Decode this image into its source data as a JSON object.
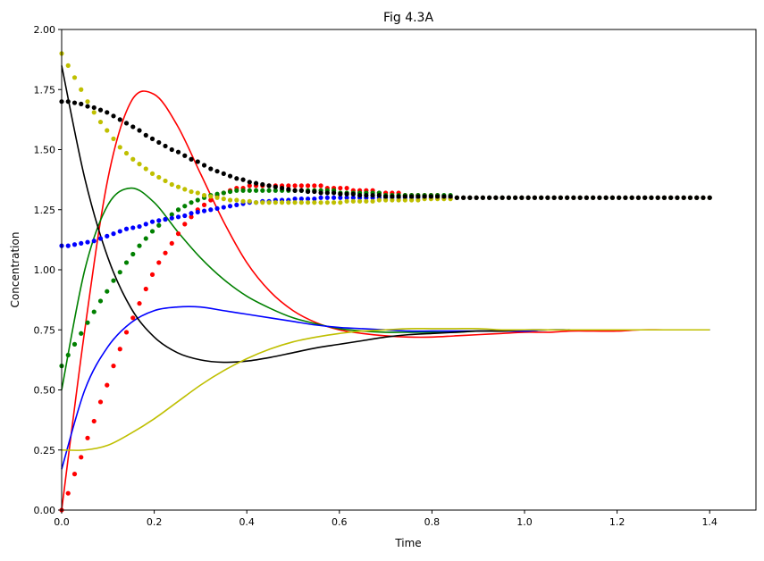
{
  "chart_data": {
    "type": "line",
    "title": "Fig 4.3A",
    "xlabel": "Time",
    "ylabel": "Concentration",
    "xlim": [
      0,
      1.5
    ],
    "ylim": [
      0,
      2.0
    ],
    "grid": false,
    "xticks": [
      "0.0",
      "0.2",
      "0.4",
      "0.6",
      "0.8",
      "1.0",
      "1.2",
      "1.4"
    ],
    "xtick_values": [
      0,
      0.2,
      0.4,
      0.6,
      0.8,
      1.0,
      1.2,
      1.4
    ],
    "yticks": [
      "0.00",
      "0.25",
      "0.50",
      "0.75",
      "1.00",
      "1.25",
      "1.50",
      "1.75",
      "2.00"
    ],
    "ytick_values": [
      0,
      0.25,
      0.5,
      0.75,
      1.0,
      1.25,
      1.5,
      1.75,
      2.0
    ],
    "line_x_start": 0,
    "line_x_step": 0.05,
    "lines": [
      {
        "name": "red-line",
        "color": "#ff0000",
        "values": [
          0,
          0.75,
          1.38,
          1.7,
          1.73,
          1.6,
          1.4,
          1.2,
          1.03,
          0.91,
          0.83,
          0.78,
          0.75,
          0.735,
          0.725,
          0.72,
          0.72,
          0.725,
          0.73,
          0.735,
          0.74,
          0.74,
          0.745,
          0.745,
          0.745,
          0.75,
          0.75,
          0.75,
          0.75
        ]
      },
      {
        "name": "green-line",
        "color": "#008000",
        "values": [
          0.5,
          1.0,
          1.27,
          1.34,
          1.28,
          1.16,
          1.05,
          0.96,
          0.89,
          0.84,
          0.8,
          0.775,
          0.755,
          0.745,
          0.74,
          0.74,
          0.74,
          0.74,
          0.745,
          0.745,
          0.745,
          0.75,
          0.75,
          0.75,
          0.75,
          0.75,
          0.75,
          0.75,
          0.75
        ]
      },
      {
        "name": "blue-line",
        "color": "#0000ff",
        "values": [
          0.17,
          0.5,
          0.68,
          0.78,
          0.83,
          0.845,
          0.845,
          0.83,
          0.815,
          0.8,
          0.785,
          0.77,
          0.76,
          0.755,
          0.75,
          0.745,
          0.745,
          0.745,
          0.745,
          0.745,
          0.745,
          0.75,
          0.75,
          0.75,
          0.75,
          0.75,
          0.75,
          0.75,
          0.75
        ]
      },
      {
        "name": "black-line",
        "color": "#000000",
        "values": [
          1.85,
          1.38,
          1.05,
          0.84,
          0.72,
          0.655,
          0.625,
          0.615,
          0.62,
          0.635,
          0.655,
          0.675,
          0.69,
          0.705,
          0.72,
          0.73,
          0.735,
          0.74,
          0.745,
          0.745,
          0.75,
          0.75,
          0.75,
          0.75,
          0.75,
          0.75,
          0.75,
          0.75,
          0.75
        ]
      },
      {
        "name": "yellow-line",
        "color": "#bfbf00",
        "values": [
          0.25,
          0.25,
          0.27,
          0.32,
          0.38,
          0.45,
          0.52,
          0.58,
          0.63,
          0.67,
          0.7,
          0.72,
          0.735,
          0.745,
          0.75,
          0.755,
          0.755,
          0.755,
          0.755,
          0.75,
          0.75,
          0.75,
          0.75,
          0.75,
          0.75,
          0.75,
          0.75,
          0.75,
          0.75
        ]
      }
    ],
    "dot_x_start": 0,
    "dot_x_step": 0.014,
    "dots": [
      {
        "name": "red-dots",
        "color": "#ff0000",
        "values": [
          0,
          0.07,
          0.15,
          0.22,
          0.3,
          0.37,
          0.45,
          0.52,
          0.6,
          0.67,
          0.74,
          0.8,
          0.86,
          0.92,
          0.98,
          1.03,
          1.07,
          1.11,
          1.15,
          1.19,
          1.22,
          1.25,
          1.27,
          1.29,
          1.31,
          1.32,
          1.33,
          1.34,
          1.34,
          1.35,
          1.35,
          1.35,
          1.35,
          1.35,
          1.35,
          1.35,
          1.35,
          1.35,
          1.35,
          1.35,
          1.35,
          1.34,
          1.34,
          1.34,
          1.34,
          1.33,
          1.33,
          1.33,
          1.33,
          1.32,
          1.32,
          1.32,
          1.32,
          1.31,
          1.31,
          1.31,
          1.31,
          1.31,
          1.31,
          1.3,
          1.3,
          1.3,
          1.3,
          1.3,
          1.3,
          1.3,
          1.3,
          1.3,
          1.3,
          1.3,
          1.3,
          1.3,
          1.3,
          1.3,
          1.3,
          1.3,
          1.3,
          1.3,
          1.3,
          1.3,
          1.3,
          1.3,
          1.3,
          1.3,
          1.3,
          1.3,
          1.3,
          1.3,
          1.3,
          1.3,
          1.3,
          1.3,
          1.3,
          1.3,
          1.3,
          1.3,
          1.3,
          1.3,
          1.3,
          1.3,
          1.3
        ]
      },
      {
        "name": "green-dots",
        "color": "#008000",
        "values": [
          0.6,
          0.645,
          0.69,
          0.735,
          0.78,
          0.825,
          0.87,
          0.91,
          0.955,
          0.99,
          1.03,
          1.065,
          1.1,
          1.13,
          1.16,
          1.185,
          1.21,
          1.23,
          1.25,
          1.265,
          1.28,
          1.29,
          1.3,
          1.31,
          1.315,
          1.32,
          1.325,
          1.33,
          1.33,
          1.33,
          1.33,
          1.33,
          1.33,
          1.33,
          1.33,
          1.33,
          1.33,
          1.33,
          1.33,
          1.33,
          1.33,
          1.33,
          1.33,
          1.32,
          1.32,
          1.32,
          1.32,
          1.32,
          1.32,
          1.32,
          1.31,
          1.31,
          1.31,
          1.31,
          1.31,
          1.31,
          1.31,
          1.31,
          1.31,
          1.31,
          1.31,
          1.3,
          1.3,
          1.3,
          1.3,
          1.3,
          1.3,
          1.3,
          1.3,
          1.3,
          1.3,
          1.3,
          1.3,
          1.3,
          1.3,
          1.3,
          1.3,
          1.3,
          1.3,
          1.3,
          1.3,
          1.3,
          1.3,
          1.3,
          1.3,
          1.3,
          1.3,
          1.3,
          1.3,
          1.3,
          1.3,
          1.3,
          1.3,
          1.3,
          1.3,
          1.3,
          1.3,
          1.3,
          1.3,
          1.3,
          1.3
        ]
      },
      {
        "name": "blue-dots",
        "color": "#0000ff",
        "values": [
          1.1,
          1.1,
          1.105,
          1.11,
          1.115,
          1.12,
          1.13,
          1.14,
          1.15,
          1.16,
          1.17,
          1.175,
          1.18,
          1.19,
          1.2,
          1.205,
          1.21,
          1.215,
          1.22,
          1.225,
          1.235,
          1.24,
          1.245,
          1.25,
          1.255,
          1.26,
          1.265,
          1.27,
          1.275,
          1.28,
          1.28,
          1.285,
          1.285,
          1.29,
          1.29,
          1.29,
          1.295,
          1.295,
          1.295,
          1.295,
          1.3,
          1.3,
          1.3,
          1.3,
          1.3,
          1.3,
          1.3,
          1.3,
          1.3,
          1.3,
          1.3,
          1.3,
          1.3,
          1.3,
          1.3,
          1.3,
          1.3,
          1.3,
          1.3,
          1.3,
          1.3,
          1.3,
          1.3,
          1.3,
          1.3,
          1.3,
          1.3,
          1.3,
          1.3,
          1.3,
          1.3,
          1.3,
          1.3,
          1.3,
          1.3,
          1.3,
          1.3,
          1.3,
          1.3,
          1.3,
          1.3,
          1.3,
          1.3,
          1.3,
          1.3,
          1.3,
          1.3,
          1.3,
          1.3,
          1.3,
          1.3,
          1.3,
          1.3,
          1.3,
          1.3,
          1.3,
          1.3,
          1.3,
          1.3,
          1.3,
          1.3
        ]
      },
      {
        "name": "yellow-dots",
        "color": "#bfbf00",
        "values": [
          1.9,
          1.85,
          1.8,
          1.75,
          1.7,
          1.655,
          1.615,
          1.58,
          1.545,
          1.51,
          1.485,
          1.46,
          1.44,
          1.42,
          1.4,
          1.385,
          1.37,
          1.355,
          1.345,
          1.335,
          1.325,
          1.32,
          1.31,
          1.305,
          1.3,
          1.295,
          1.29,
          1.29,
          1.285,
          1.285,
          1.28,
          1.28,
          1.28,
          1.28,
          1.28,
          1.28,
          1.28,
          1.28,
          1.28,
          1.28,
          1.28,
          1.28,
          1.28,
          1.28,
          1.285,
          1.285,
          1.285,
          1.285,
          1.285,
          1.29,
          1.29,
          1.29,
          1.29,
          1.29,
          1.29,
          1.29,
          1.295,
          1.295,
          1.295,
          1.295,
          1.295,
          1.3,
          1.3,
          1.3,
          1.3,
          1.3,
          1.3,
          1.3,
          1.3,
          1.3,
          1.3,
          1.3,
          1.3,
          1.3,
          1.3,
          1.3,
          1.3,
          1.3,
          1.3,
          1.3,
          1.3,
          1.3,
          1.3,
          1.3,
          1.3,
          1.3,
          1.3,
          1.3,
          1.3,
          1.3,
          1.3,
          1.3,
          1.3,
          1.3,
          1.3,
          1.3,
          1.3,
          1.3,
          1.3,
          1.3,
          1.3
        ]
      },
      {
        "name": "black-dots",
        "color": "#000000",
        "values": [
          1.7,
          1.7,
          1.695,
          1.69,
          1.68,
          1.675,
          1.665,
          1.655,
          1.64,
          1.625,
          1.61,
          1.595,
          1.58,
          1.56,
          1.545,
          1.53,
          1.515,
          1.5,
          1.49,
          1.475,
          1.46,
          1.45,
          1.435,
          1.42,
          1.41,
          1.4,
          1.39,
          1.38,
          1.375,
          1.365,
          1.36,
          1.355,
          1.35,
          1.345,
          1.34,
          1.335,
          1.33,
          1.33,
          1.325,
          1.325,
          1.32,
          1.32,
          1.32,
          1.315,
          1.315,
          1.315,
          1.31,
          1.31,
          1.31,
          1.31,
          1.305,
          1.305,
          1.305,
          1.305,
          1.305,
          1.305,
          1.305,
          1.305,
          1.305,
          1.305,
          1.305,
          1.3,
          1.3,
          1.3,
          1.3,
          1.3,
          1.3,
          1.3,
          1.3,
          1.3,
          1.3,
          1.3,
          1.3,
          1.3,
          1.3,
          1.3,
          1.3,
          1.3,
          1.3,
          1.3,
          1.3,
          1.3,
          1.3,
          1.3,
          1.3,
          1.3,
          1.3,
          1.3,
          1.3,
          1.3,
          1.3,
          1.3,
          1.3,
          1.3,
          1.3,
          1.3,
          1.3,
          1.3,
          1.3,
          1.3,
          1.3
        ]
      }
    ]
  }
}
